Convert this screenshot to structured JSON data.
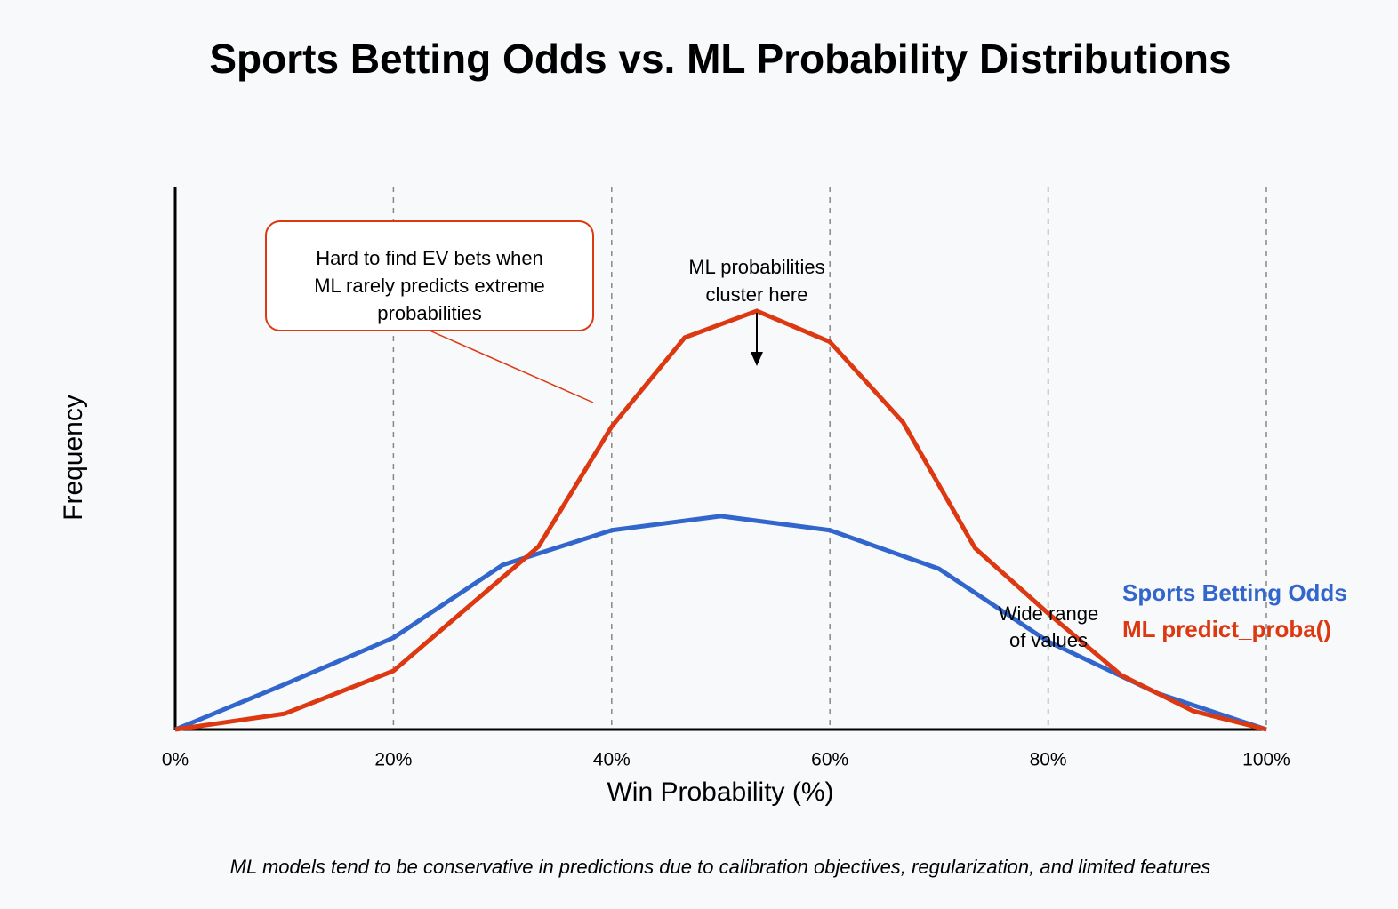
{
  "chart_data": {
    "type": "line",
    "title": "Sports Betting Odds vs. ML Probability Distributions",
    "x_label": "Win Probability (%)",
    "y_label": "Frequency",
    "xlim": [
      0,
      100
    ],
    "ylim": [
      0,
      100
    ],
    "xticks": [
      {
        "value": 0,
        "label": "0%"
      },
      {
        "value": 20,
        "label": "20%"
      },
      {
        "value": 40,
        "label": "40%"
      },
      {
        "value": 60,
        "label": "60%"
      },
      {
        "value": 80,
        "label": "80%"
      },
      {
        "value": 100,
        "label": "100%"
      }
    ],
    "grid": true,
    "legend": "right",
    "series": [
      {
        "name": "Sports Betting Odds",
        "color": "#3366cc",
        "x": [
          0,
          10,
          20,
          30,
          40,
          50,
          60,
          70,
          80,
          90,
          100
        ],
        "values": [
          0,
          8.3,
          16.9,
          30.3,
          36.7,
          39.3,
          36.7,
          29.6,
          16.2,
          6.7,
          0
        ]
      },
      {
        "name": "ML predict_proba()",
        "color": "#dc3912",
        "x": [
          0,
          10,
          20,
          30,
          33.3,
          40,
          46.7,
          53.3,
          60,
          66.7,
          73.3,
          80,
          86.7,
          93.3,
          100
        ],
        "values": [
          0,
          2.9,
          10.8,
          28,
          33.7,
          55.8,
          72.2,
          77.1,
          71.4,
          56.6,
          33.4,
          21.4,
          10,
          3.4,
          0
        ]
      }
    ],
    "annotations": [
      {
        "text": [
          "Hard to find EV bets when",
          "ML rarely predicts extreme",
          "probabilities"
        ]
      },
      {
        "text": [
          "ML probabilities",
          "cluster here"
        ]
      },
      {
        "text": [
          "Wide range",
          "of values"
        ]
      }
    ],
    "footnote": "ML models tend to be conservative in predictions due to calibration objectives, regularization, and limited features"
  }
}
